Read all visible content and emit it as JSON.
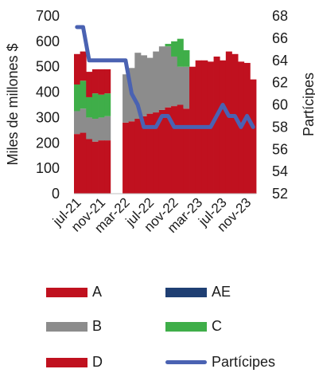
{
  "chart_data": {
    "type": "bar",
    "y_left": {
      "label": "Miles de millones $",
      "ylim": [
        0,
        700
      ],
      "ticks": [
        0,
        100,
        200,
        300,
        400,
        500,
        600,
        700
      ]
    },
    "y_right": {
      "label": "Partícipes",
      "ylim": [
        52,
        68
      ],
      "ticks": [
        52,
        54,
        56,
        58,
        60,
        62,
        64,
        66,
        68
      ]
    },
    "x_tick_labels": [
      "jul-21",
      "nov-21",
      "mar-22",
      "jul-22",
      "nov-22",
      "mar-23",
      "jul-23",
      "nov-23"
    ],
    "x_ticks_index": [
      0,
      4,
      8,
      12,
      16,
      20,
      24,
      28
    ],
    "months": [
      "jul-21",
      "ago-21",
      "sep-21",
      "oct-21",
      "nov-21",
      "dic-21",
      "ene-22",
      "feb-22",
      "mar-22",
      "abr-22",
      "may-22",
      "jun-22",
      "jul-22",
      "ago-22",
      "sep-22",
      "oct-22",
      "nov-22",
      "dic-22",
      "ene-23",
      "feb-23",
      "mar-23",
      "abr-23",
      "may-23",
      "jun-23",
      "jul-23",
      "ago-23",
      "sep-23",
      "oct-23",
      "nov-23",
      "dic-23"
    ],
    "series": [
      {
        "name": "A",
        "color": "#c0111f",
        "values": [
          235,
          240,
          215,
          205,
          210,
          210,
          0,
          0,
          280,
          285,
          295,
          305,
          315,
          320,
          330,
          340,
          345,
          350,
          335,
          500,
          525,
          525,
          520,
          540,
          525,
          560,
          550,
          520,
          515,
          450
        ]
      },
      {
        "name": "AE",
        "color": "#1f3f73",
        "values": [
          0,
          0,
          0,
          0,
          0,
          0,
          0,
          0,
          0,
          0,
          0,
          0,
          0,
          0,
          0,
          0,
          0,
          0,
          0,
          0,
          0,
          0,
          0,
          0,
          0,
          0,
          0,
          0,
          0,
          0
        ]
      },
      {
        "name": "B",
        "color": "#8c8c8c",
        "values": [
          90,
          95,
          85,
          90,
          90,
          95,
          0,
          0,
          190,
          210,
          260,
          240,
          220,
          240,
          250,
          240,
          195,
          150,
          165,
          0,
          0,
          0,
          0,
          0,
          0,
          0,
          0,
          0,
          0,
          0
        ]
      },
      {
        "name": "C",
        "color": "#3fae49",
        "values": [
          105,
          110,
          80,
          100,
          90,
          90,
          0,
          0,
          0,
          0,
          0,
          0,
          0,
          0,
          0,
          10,
          60,
          110,
          65,
          0,
          0,
          0,
          0,
          0,
          0,
          0,
          0,
          0,
          0,
          0
        ]
      },
      {
        "name": "D",
        "color": "#c0111f",
        "values": [
          120,
          115,
          100,
          95,
          100,
          95,
          0,
          0,
          0,
          0,
          0,
          0,
          0,
          0,
          0,
          0,
          0,
          0,
          0,
          0,
          0,
          0,
          0,
          0,
          0,
          0,
          0,
          0,
          0,
          0
        ]
      }
    ],
    "line": {
      "name": "Partícipes",
      "color": "#4a62b2",
      "values": [
        67,
        67,
        64,
        64,
        64,
        64,
        64,
        64,
        64,
        61,
        60,
        58,
        58,
        58,
        59,
        59,
        58,
        58,
        58,
        58,
        58,
        58,
        58,
        59,
        60,
        59,
        59,
        58,
        59,
        58
      ]
    }
  }
}
